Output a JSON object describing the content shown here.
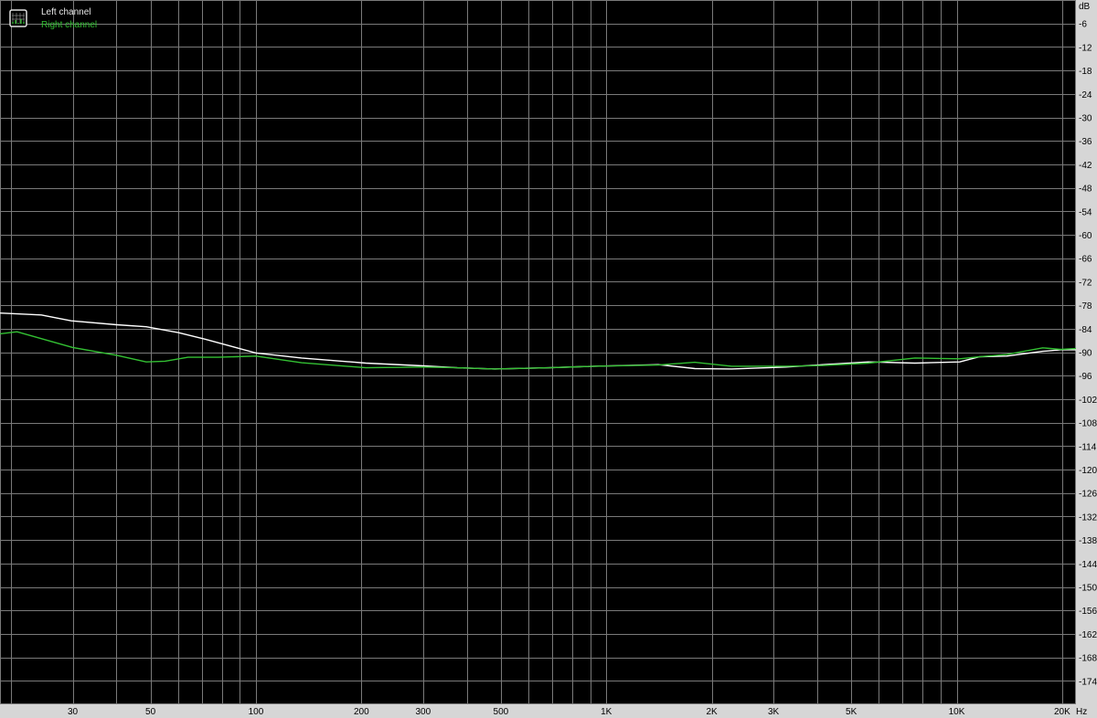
{
  "chart_data": {
    "type": "line",
    "title": "",
    "xlabel": "Hz",
    "ylabel": "dB",
    "xscale": "log",
    "xlim": [
      18.6,
      21900
    ],
    "ylim": [
      -180,
      0
    ],
    "grid": true,
    "legend_placement": "top-left",
    "background": "#000000",
    "grid_color": "#7a7a7a",
    "x_grid": [
      20,
      30,
      40,
      50,
      60,
      70,
      80,
      90,
      100,
      200,
      300,
      400,
      500,
      600,
      700,
      800,
      900,
      1000,
      2000,
      3000,
      4000,
      5000,
      6000,
      7000,
      8000,
      9000,
      10000,
      20000
    ],
    "x_ticks": [
      {
        "value": 30,
        "label": "30"
      },
      {
        "value": 50,
        "label": "50"
      },
      {
        "value": 100,
        "label": "100"
      },
      {
        "value": 200,
        "label": "200"
      },
      {
        "value": 300,
        "label": "300"
      },
      {
        "value": 500,
        "label": "500"
      },
      {
        "value": 1000,
        "label": "1K"
      },
      {
        "value": 2000,
        "label": "2K"
      },
      {
        "value": 3000,
        "label": "3K"
      },
      {
        "value": 5000,
        "label": "5K"
      },
      {
        "value": 10000,
        "label": "10K"
      },
      {
        "value": 20000,
        "label": "20K"
      }
    ],
    "y_ticks": [
      -6,
      -12,
      -18,
      -24,
      -30,
      -36,
      -42,
      -48,
      -54,
      -60,
      -66,
      -72,
      -78,
      -84,
      -90,
      -96,
      -102,
      -108,
      -114,
      -120,
      -126,
      -132,
      -138,
      -144,
      -150,
      -156,
      -162,
      -168,
      -174
    ],
    "series": [
      {
        "name": "Left channel",
        "color": "#ffffff",
        "x": [
          18.6,
          24.4,
          29.7,
          40,
          48.6,
          60,
          71.8,
          85,
          100,
          135,
          206,
          300,
          376,
          480,
          685,
          923,
          1410,
          1790,
          2280,
          3260,
          4150,
          5600,
          7600,
          10200,
          11600,
          13900,
          17600,
          19800,
          21900
        ],
        "y": [
          -80,
          -80.5,
          -82,
          -83,
          -83.5,
          -85,
          -86.7,
          -88.5,
          -90.2,
          -91.5,
          -92.8,
          -93.5,
          -94,
          -94.3,
          -94,
          -93.6,
          -93.2,
          -94.2,
          -94.3,
          -93.8,
          -93.2,
          -92.5,
          -92.8,
          -92.5,
          -91.2,
          -91,
          -89.8,
          -89.4,
          -89.4
        ]
      },
      {
        "name": "Right channel",
        "color": "#33c033",
        "x": [
          18.6,
          20.8,
          30,
          40,
          48.6,
          55,
          64,
          78,
          100,
          135,
          206,
          300,
          376,
          480,
          685,
          923,
          1410,
          1790,
          2280,
          3260,
          4150,
          5600,
          7600,
          10200,
          11600,
          13900,
          17600,
          19800,
          21900
        ],
        "y": [
          -85.3,
          -84.8,
          -88.8,
          -90.8,
          -92.5,
          -92.3,
          -91.3,
          -91.3,
          -91,
          -92.7,
          -94,
          -93.8,
          -94,
          -94.3,
          -94,
          -93.6,
          -93.3,
          -92.6,
          -93.6,
          -93.6,
          -93.4,
          -92.8,
          -91.5,
          -91.7,
          -91.2,
          -90.6,
          -88.9,
          -89.3,
          -89.1
        ]
      }
    ]
  },
  "legend": {
    "icon": "spectrum-chart-icon",
    "items": [
      "Left channel",
      "Right channel"
    ]
  }
}
